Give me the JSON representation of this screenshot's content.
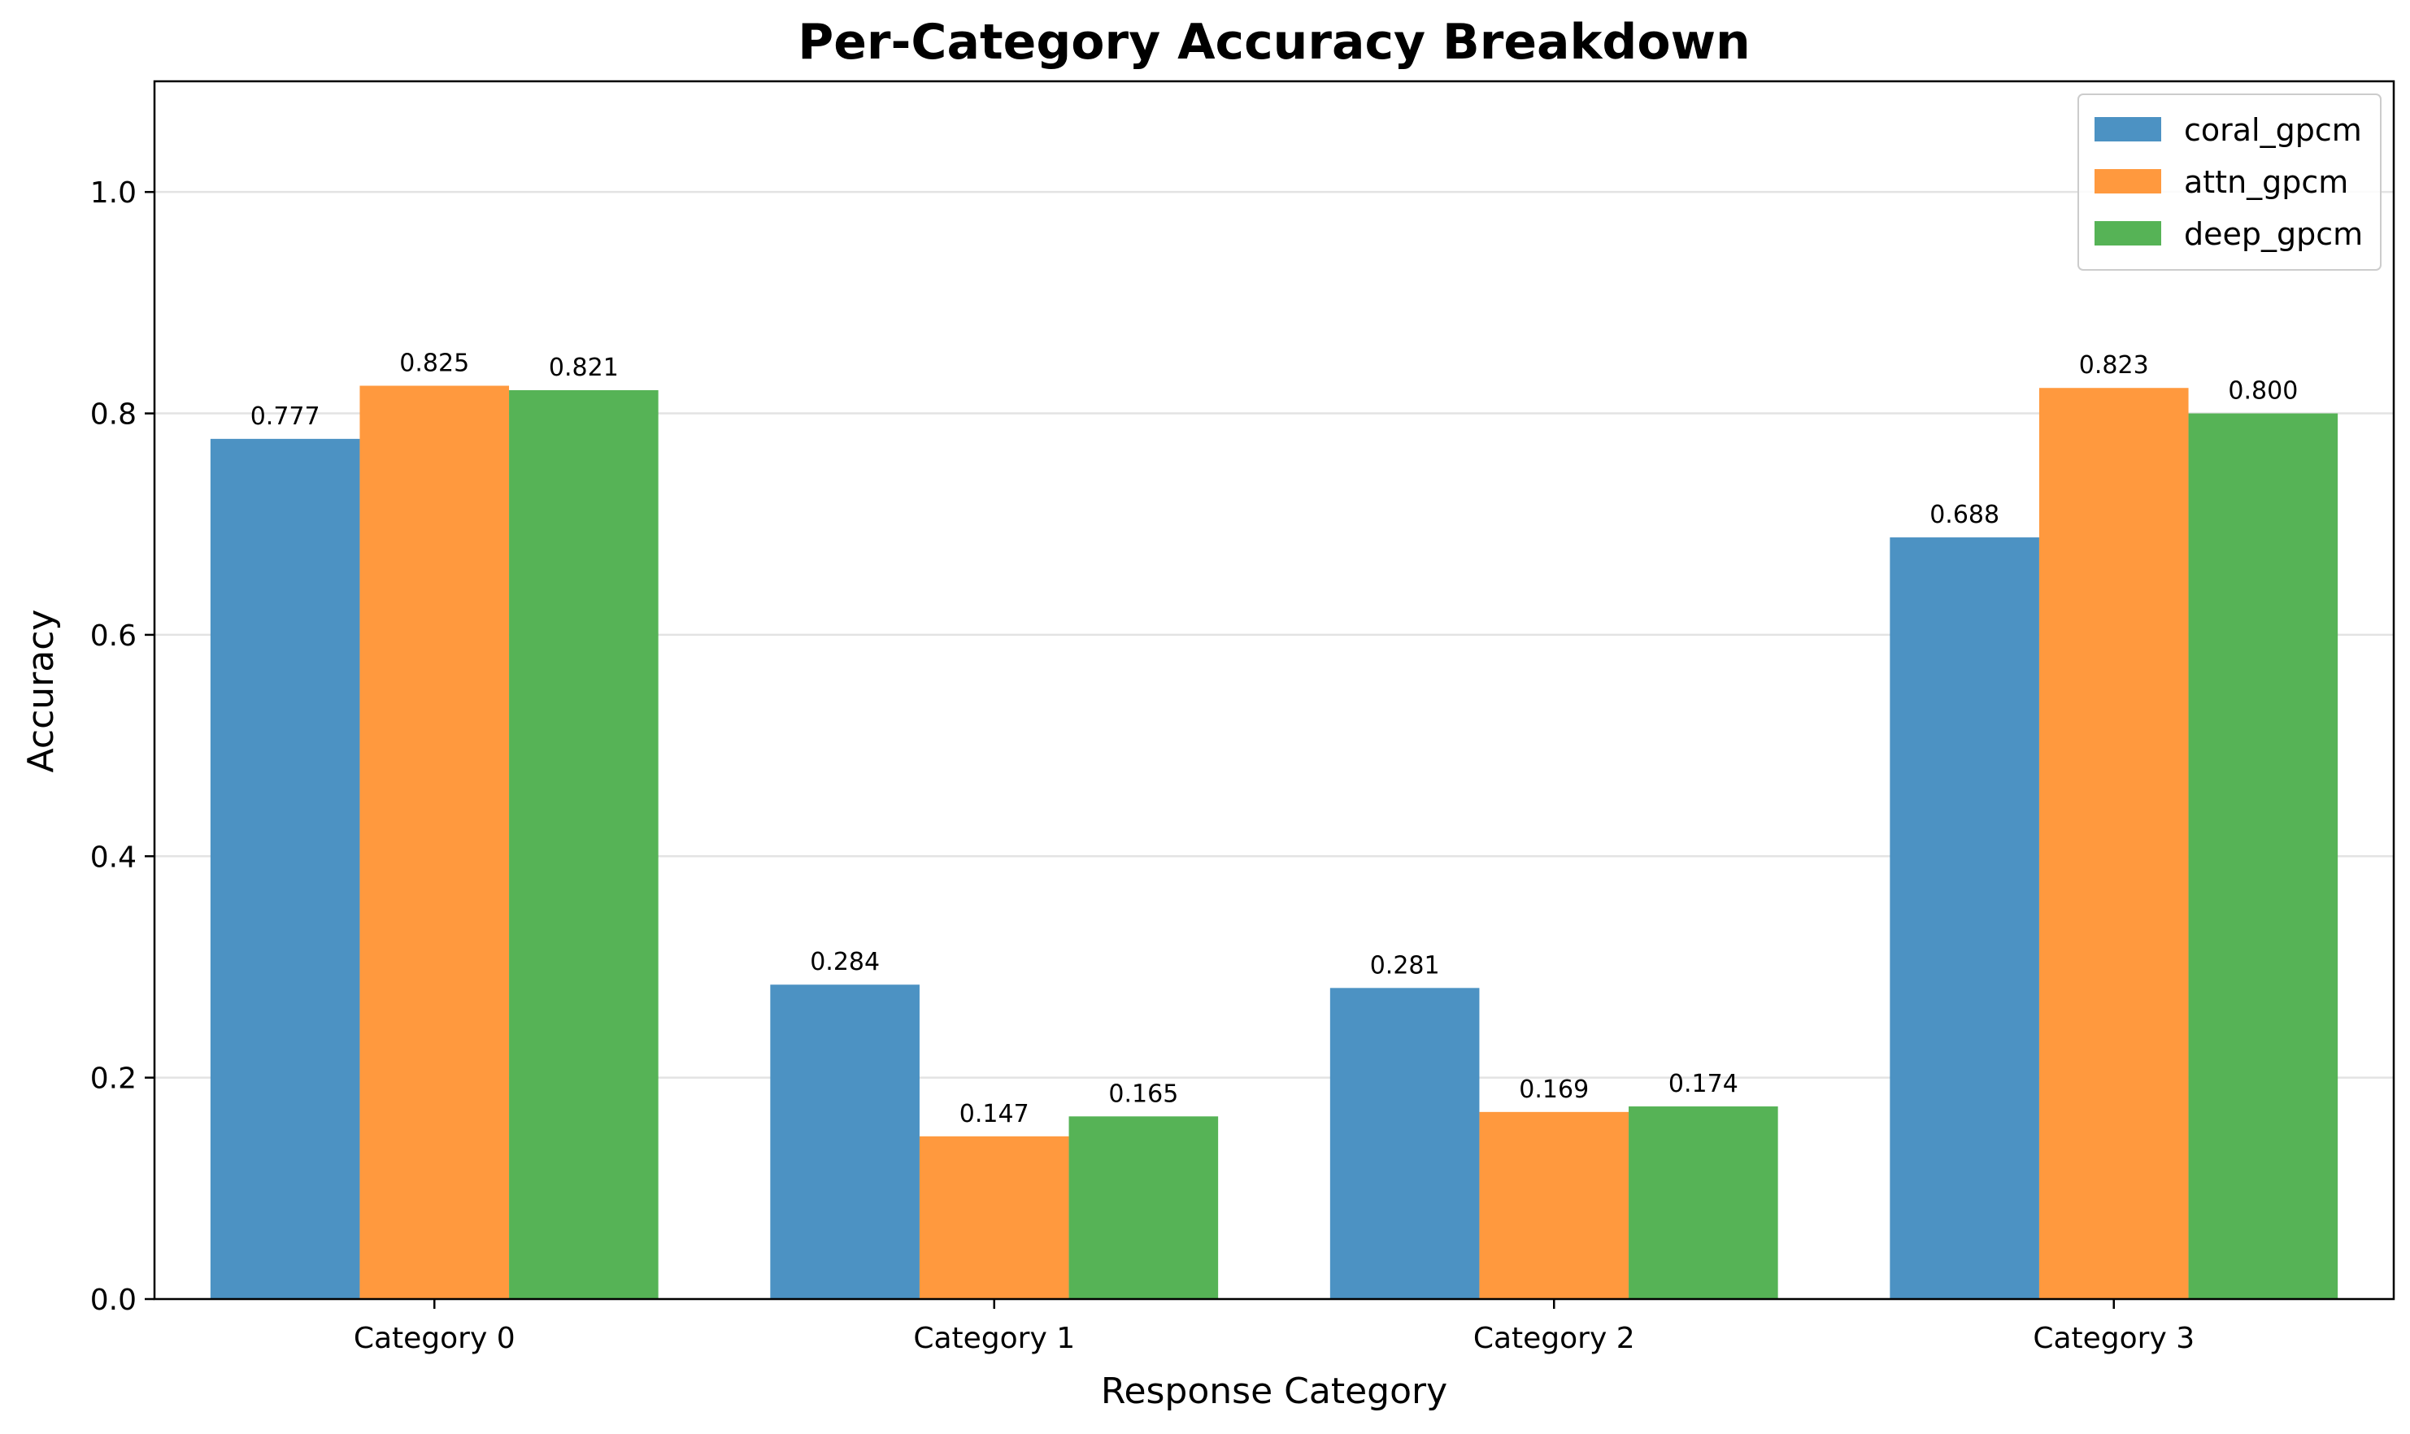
{
  "chart_data": {
    "type": "bar",
    "title": "Per-Category Accuracy Breakdown",
    "xlabel": "Response Category",
    "ylabel": "Accuracy",
    "categories": [
      "Category 0",
      "Category 1",
      "Category 2",
      "Category 3"
    ],
    "series": [
      {
        "name": "coral_gpcm",
        "color": "#4c92c3",
        "values": [
          0.777,
          0.284,
          0.281,
          0.688
        ],
        "labels": [
          "0.777",
          "0.284",
          "0.281",
          "0.688"
        ]
      },
      {
        "name": "attn_gpcm",
        "color": "#ff993e",
        "values": [
          0.825,
          0.147,
          0.169,
          0.823
        ],
        "labels": [
          "0.825",
          "0.147",
          "0.169",
          "0.823"
        ]
      },
      {
        "name": "deep_gpcm",
        "color": "#56b356",
        "values": [
          0.821,
          0.165,
          0.174,
          0.8
        ],
        "labels": [
          "0.821",
          "0.165",
          "0.174",
          "0.800"
        ]
      }
    ],
    "ylim": [
      0,
      1.1
    ],
    "yticks": [
      0.0,
      0.2,
      0.4,
      0.6,
      0.8,
      1.0
    ],
    "ytick_labels": [
      "0.0",
      "0.2",
      "0.4",
      "0.6",
      "0.8",
      "1.0"
    ],
    "grid": "y",
    "legend_position": "top-right"
  }
}
